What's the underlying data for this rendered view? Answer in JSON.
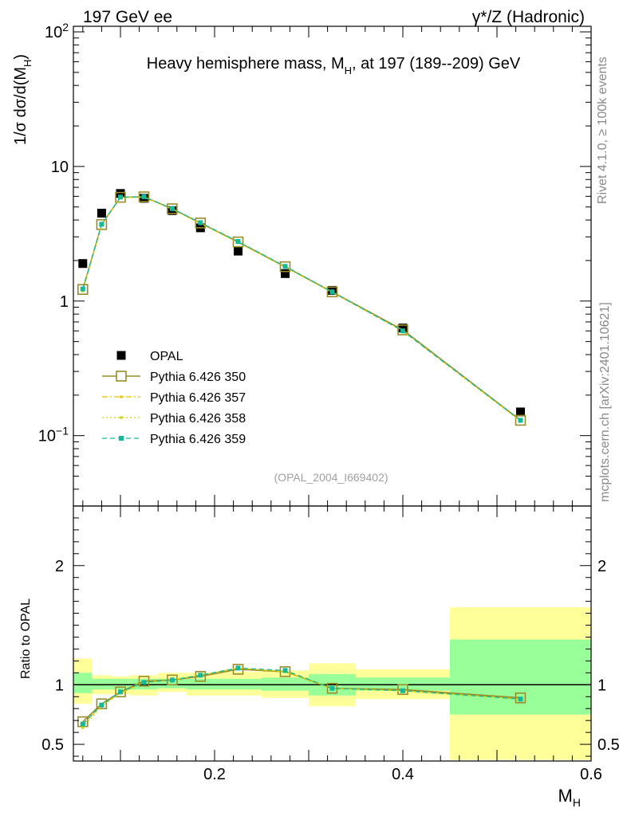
{
  "header": {
    "left_label": "197 GeV ee",
    "right_label": "γ*/Z (Hadronic)"
  },
  "side_labels": {
    "rivet": "Rivet 4.1.0, ≥ 100k events",
    "mcplots": "mcplots.cern.ch [arXiv:2401.10621]"
  },
  "chart_data": [
    {
      "panel": "main",
      "type": "scatter",
      "title": "Heavy hemisphere mass, M_H, at 197 (189--209) GeV",
      "title_parts": {
        "pre": "Heavy hemisphere mass, M",
        "sub": "H",
        "post": ", at 197 (189--209) GeV"
      },
      "ylabel_parts": {
        "pre": "1/σ  dσ/d(M",
        "sub": "H",
        "post": ")"
      },
      "yscale": "log",
      "ylim": [
        0.03,
        110
      ],
      "xlim": [
        0.05,
        0.6
      ],
      "yticks": [
        {
          "value": 100,
          "label": "10",
          "sup": "2"
        },
        {
          "value": 10,
          "label": "10",
          "sup": ""
        },
        {
          "value": 1,
          "label": "1",
          "sup": ""
        },
        {
          "value": 0.1,
          "label": "10",
          "sup": "−1"
        }
      ],
      "analysis_tag": "(OPAL_2004_I669402)",
      "legend_position": "lower-left",
      "x": [
        0.06,
        0.08,
        0.1,
        0.125,
        0.155,
        0.185,
        0.225,
        0.275,
        0.325,
        0.4,
        0.525
      ],
      "series": [
        {
          "name": "OPAL",
          "style": "data",
          "color": "#000000",
          "values": [
            1.9,
            4.5,
            6.3,
            5.8,
            4.7,
            3.5,
            2.35,
            1.6,
            1.2,
            0.63,
            0.15
          ]
        },
        {
          "name": "Pythia 6.426 350",
          "style": "open-square-solid",
          "color": "#9a8c2a",
          "values": [
            1.22,
            3.7,
            5.9,
            5.95,
            4.85,
            3.8,
            2.75,
            1.8,
            1.17,
            0.61,
            0.13
          ]
        },
        {
          "name": "Pythia 6.426 357",
          "style": "dashdot",
          "color": "#e8c200",
          "values": [
            1.2,
            3.68,
            5.88,
            5.92,
            4.83,
            3.78,
            2.73,
            1.79,
            1.16,
            0.6,
            0.129
          ]
        },
        {
          "name": "Pythia 6.426 358",
          "style": "dotted",
          "color": "#c8d400",
          "values": [
            1.19,
            3.67,
            5.87,
            5.91,
            4.82,
            3.77,
            2.72,
            1.78,
            1.16,
            0.6,
            0.128
          ]
        },
        {
          "name": "Pythia 6.426 359",
          "style": "dashed",
          "color": "#14b99a",
          "values": [
            1.23,
            3.72,
            5.92,
            5.96,
            4.86,
            3.82,
            2.77,
            1.81,
            1.17,
            0.6,
            0.13
          ]
        }
      ]
    },
    {
      "panel": "ratio",
      "type": "line",
      "ylabel": "Ratio to OPAL",
      "xlabel_parts": {
        "pre": "M",
        "sub": "H"
      },
      "ylim": [
        0.36,
        2.5
      ],
      "xlim": [
        0.05,
        0.6
      ],
      "yticks": [
        0.5,
        1,
        2
      ],
      "ytick_labels": [
        "0.5",
        "1",
        "2"
      ],
      "xticks": [
        0.2,
        0.4,
        0.6
      ],
      "xtick_labels": [
        "0.2",
        "0.4",
        "0.6"
      ],
      "bin_edges": [
        0.05,
        0.07,
        0.09,
        0.11,
        0.14,
        0.17,
        0.2,
        0.25,
        0.3,
        0.35,
        0.45,
        0.6
      ],
      "band_inner": [
        [
          0.93,
          1.1
        ],
        [
          0.96,
          1.05
        ],
        [
          0.96,
          1.05
        ],
        [
          0.96,
          1.05
        ],
        [
          0.97,
          1.05
        ],
        [
          0.96,
          1.05
        ],
        [
          0.96,
          1.05
        ],
        [
          0.95,
          1.06
        ],
        [
          0.91,
          1.09
        ],
        [
          0.95,
          1.06
        ],
        [
          0.75,
          1.38
        ]
      ],
      "band_outer": [
        [
          0.84,
          1.22
        ],
        [
          0.92,
          1.08
        ],
        [
          0.92,
          1.07
        ],
        [
          0.91,
          1.08
        ],
        [
          0.94,
          1.1
        ],
        [
          0.91,
          1.1
        ],
        [
          0.91,
          1.11
        ],
        [
          0.89,
          1.12
        ],
        [
          0.82,
          1.18
        ],
        [
          0.88,
          1.13
        ],
        [
          0.37,
          1.65
        ]
      ],
      "x": [
        0.06,
        0.08,
        0.1,
        0.125,
        0.155,
        0.185,
        0.225,
        0.275,
        0.325,
        0.4,
        0.525
      ],
      "series": [
        {
          "name": "Pythia 6.426 350",
          "style": "open-square-solid",
          "color": "#9a8c2a",
          "values": [
            0.69,
            0.84,
            0.94,
            1.03,
            1.04,
            1.07,
            1.13,
            1.11,
            0.97,
            0.96,
            0.89
          ]
        },
        {
          "name": "Pythia 6.426 357",
          "style": "dashdot",
          "color": "#e8c200",
          "values": [
            0.66,
            0.83,
            0.93,
            1.02,
            1.04,
            1.08,
            1.14,
            1.11,
            0.97,
            0.95,
            0.88
          ]
        },
        {
          "name": "Pythia 6.426 358",
          "style": "dotted",
          "color": "#c8d400",
          "values": [
            0.64,
            0.82,
            0.93,
            1.02,
            1.04,
            1.08,
            1.14,
            1.11,
            0.97,
            0.95,
            0.88
          ]
        },
        {
          "name": "Pythia 6.426 359",
          "style": "dashed",
          "color": "#14b99a",
          "values": [
            0.67,
            0.83,
            0.94,
            1.02,
            1.04,
            1.08,
            1.14,
            1.12,
            0.97,
            0.95,
            0.88
          ]
        }
      ]
    }
  ]
}
